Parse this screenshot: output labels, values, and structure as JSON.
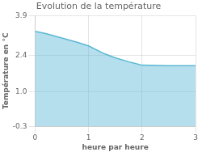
{
  "chart_data": {
    "type": "area",
    "title": "Evolution de la température",
    "xlabel": "heure par heure",
    "ylabel": "Température en °C",
    "x": [
      0,
      0.2,
      0.5,
      0.8,
      1.0,
      1.3,
      1.5,
      1.8,
      2.0,
      2.5,
      3.0
    ],
    "values": [
      3.3,
      3.22,
      3.05,
      2.88,
      2.75,
      2.45,
      2.3,
      2.12,
      2.02,
      2.0,
      2.0
    ],
    "color": "#5bb8d4",
    "xlim": [
      0,
      3
    ],
    "xticks": [
      0,
      1,
      2,
      3
    ],
    "ylim": [
      -0.3,
      3.9
    ],
    "yticks": [
      -0.3,
      {
        "value": 1.0,
        "label": "1.0"
      },
      2.4,
      3.9
    ],
    "grid": true
  }
}
